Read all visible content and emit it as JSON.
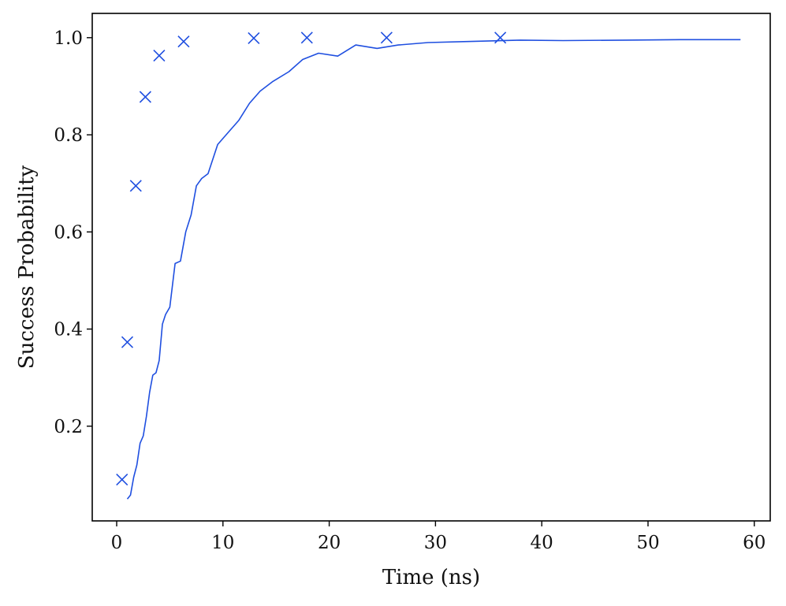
{
  "chart_data": {
    "type": "line",
    "xlabel": "Time (ns)",
    "ylabel": "Success Probability",
    "xlim": [
      -2.3,
      61.5
    ],
    "ylim": [
      0.005,
      1.05
    ],
    "xticks": [
      0,
      10,
      20,
      30,
      40,
      50,
      60
    ],
    "yticks": [
      0.2,
      0.4,
      0.6,
      0.8,
      1.0
    ],
    "xtick_labels": [
      "0",
      "10",
      "20",
      "30",
      "40",
      "50",
      "60"
    ],
    "ytick_labels": [
      "0.2",
      "0.4",
      "0.6",
      "0.8",
      "1.0"
    ],
    "grid": false,
    "legend": "none",
    "color": "#1f4fe0",
    "series": [
      {
        "kind": "line",
        "x": [
          1.0,
          1.3,
          1.6,
          1.9,
          2.2,
          2.5,
          2.8,
          3.1,
          3.4,
          3.7,
          4.0,
          4.3,
          4.6,
          5.0,
          5.5,
          6.0,
          6.5,
          7.0,
          7.5,
          8.0,
          8.6,
          9.5,
          10.5,
          11.5,
          12.5,
          13.5,
          14.7,
          16.2,
          17.5,
          19.0,
          20.8,
          22.5,
          24.5,
          26.5,
          29.3,
          33.0,
          38.0,
          42.0,
          48.0,
          53.0,
          58.7
        ],
        "y": [
          0.05,
          0.058,
          0.095,
          0.12,
          0.165,
          0.18,
          0.22,
          0.27,
          0.305,
          0.31,
          0.335,
          0.41,
          0.43,
          0.445,
          0.535,
          0.54,
          0.6,
          0.635,
          0.695,
          0.71,
          0.72,
          0.78,
          0.805,
          0.83,
          0.865,
          0.89,
          0.91,
          0.93,
          0.955,
          0.968,
          0.962,
          0.985,
          0.978,
          0.985,
          0.99,
          0.992,
          0.995,
          0.994,
          0.995,
          0.996,
          0.996
        ]
      },
      {
        "kind": "scatter",
        "marker": "x",
        "x": [
          0.5,
          1.0,
          1.8,
          2.7,
          4.0,
          6.3,
          12.9,
          17.9,
          25.4,
          36.1
        ],
        "y": [
          0.09,
          0.373,
          0.695,
          0.878,
          0.963,
          0.992,
          0.999,
          1.0,
          1.0,
          1.0
        ]
      }
    ]
  }
}
